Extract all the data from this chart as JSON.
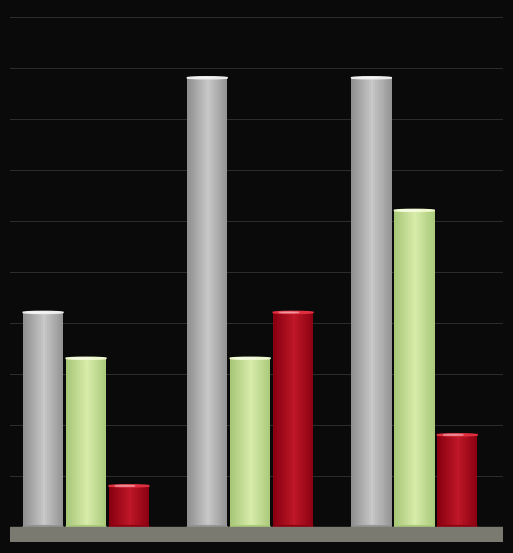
{
  "groups": 3,
  "bars_per_group": 3,
  "values": [
    [
      42,
      33,
      8
    ],
    [
      88,
      33,
      42
    ],
    [
      88,
      62,
      18
    ]
  ],
  "bar_colors": [
    "#c8c8c8",
    "#d8ecaa",
    "#c01828"
  ],
  "bar_colors_top": [
    "#ececec",
    "#eef8cc",
    "#e03040"
  ],
  "bar_colors_side": [
    "#909090",
    "#a8c878",
    "#880010"
  ],
  "background_color": "#0a0a0a",
  "grid_color": "#383838",
  "ylim": [
    0,
    100
  ],
  "bar_width": 0.32,
  "group_positions": [
    0.55,
    1.85,
    3.15
  ],
  "xlim": [
    -0.05,
    3.85
  ],
  "cylinder_ratio": 0.13,
  "floor_color": "#7a7a70",
  "floor_height": 0.04
}
